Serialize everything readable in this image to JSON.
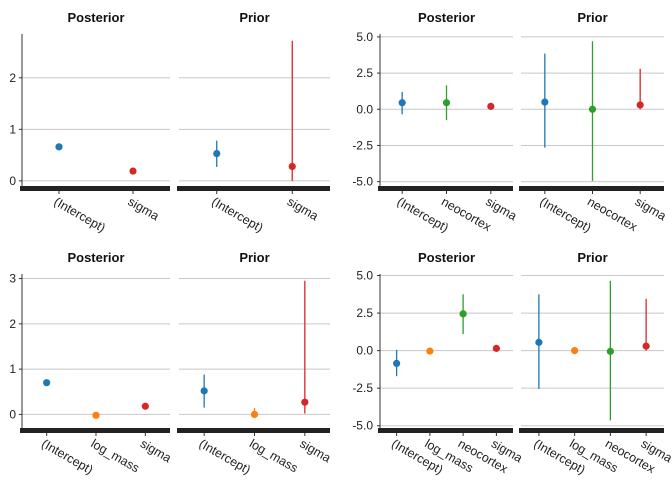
{
  "colors": {
    "intercept": "#1f77b4",
    "log_mass": "#ff7f0e",
    "neocortex": "#2ca02c",
    "sigma": "#d62728",
    "grid": "#c8c8c8",
    "axis_bar": "#222222"
  },
  "chart_data": [
    {
      "type": "scatter",
      "layout_group": 0,
      "facets": [
        {
          "title": "Posterior",
          "categories": [
            "(Intercept)",
            "sigma"
          ],
          "ylim": [
            -0.1,
            2.85
          ],
          "yticks": [
            0,
            1,
            2
          ],
          "points": [
            {
              "x": "(Intercept)",
              "y": 0.66,
              "low": 0.62,
              "high": 0.7,
              "color_key": "intercept"
            },
            {
              "x": "sigma",
              "y": 0.19,
              "low": 0.16,
              "high": 0.22,
              "color_key": "sigma"
            }
          ]
        },
        {
          "title": "Prior",
          "categories": [
            "(Intercept)",
            "sigma"
          ],
          "ylim": [
            -0.1,
            2.85
          ],
          "yticks": [],
          "points": [
            {
              "x": "(Intercept)",
              "y": 0.53,
              "low": 0.27,
              "high": 0.78,
              "color_key": "intercept"
            },
            {
              "x": "sigma",
              "y": 0.28,
              "low": 0.0,
              "high": 2.72,
              "color_key": "sigma"
            }
          ]
        }
      ]
    },
    {
      "type": "scatter",
      "layout_group": 1,
      "facets": [
        {
          "title": "Posterior",
          "categories": [
            "(Intercept)",
            "neocortex",
            "sigma"
          ],
          "ylim": [
            -5.3,
            5.2
          ],
          "yticks": [
            5.0,
            2.5,
            0.0,
            -2.5,
            -5.0
          ],
          "ytick_labels": [
            "5.0",
            "2.5",
            "0.0",
            "-2.5",
            "-5.0"
          ],
          "points": [
            {
              "x": "(Intercept)",
              "y": 0.45,
              "low": -0.35,
              "high": 1.2,
              "color_key": "intercept"
            },
            {
              "x": "neocortex",
              "y": 0.45,
              "low": -0.75,
              "high": 1.65,
              "color_key": "neocortex"
            },
            {
              "x": "sigma",
              "y": 0.2,
              "low": 0.1,
              "high": 0.3,
              "color_key": "sigma"
            }
          ]
        },
        {
          "title": "Prior",
          "categories": [
            "(Intercept)",
            "neocortex",
            "sigma"
          ],
          "ylim": [
            -5.3,
            5.2
          ],
          "yticks": [],
          "points": [
            {
              "x": "(Intercept)",
              "y": 0.5,
              "low": -2.65,
              "high": 3.85,
              "color_key": "intercept"
            },
            {
              "x": "neocortex",
              "y": 0.0,
              "low": -4.95,
              "high": 4.7,
              "color_key": "neocortex"
            },
            {
              "x": "sigma",
              "y": 0.3,
              "low": 0.0,
              "high": 2.8,
              "color_key": "sigma"
            }
          ]
        }
      ]
    },
    {
      "type": "scatter",
      "layout_group": 2,
      "facets": [
        {
          "title": "Posterior",
          "categories": [
            "(Intercept)",
            "log_mass",
            "sigma"
          ],
          "ylim": [
            -0.3,
            3.1
          ],
          "yticks": [
            0,
            1,
            2,
            3
          ],
          "points": [
            {
              "x": "(Intercept)",
              "y": 0.7,
              "low": 0.64,
              "high": 0.76,
              "color_key": "intercept"
            },
            {
              "x": "log_mass",
              "y": -0.02,
              "low": -0.06,
              "high": 0.02,
              "color_key": "log_mass"
            },
            {
              "x": "sigma",
              "y": 0.18,
              "low": 0.15,
              "high": 0.21,
              "color_key": "sigma"
            }
          ]
        },
        {
          "title": "Prior",
          "categories": [
            "(Intercept)",
            "log_mass",
            "sigma"
          ],
          "ylim": [
            -0.3,
            3.1
          ],
          "yticks": [],
          "points": [
            {
              "x": "(Intercept)",
              "y": 0.52,
              "low": 0.15,
              "high": 0.88,
              "color_key": "intercept"
            },
            {
              "x": "log_mass",
              "y": 0.0,
              "low": -0.08,
              "high": 0.14,
              "color_key": "log_mass"
            },
            {
              "x": "sigma",
              "y": 0.27,
              "low": 0.02,
              "high": 2.95,
              "color_key": "sigma"
            }
          ]
        }
      ]
    },
    {
      "type": "scatter",
      "layout_group": 3,
      "facets": [
        {
          "title": "Posterior",
          "categories": [
            "(Intercept)",
            "log_mass",
            "neocortex",
            "sigma"
          ],
          "ylim": [
            -5.15,
            5.1
          ],
          "yticks": [
            5.0,
            2.5,
            0.0,
            -2.5,
            -5.0
          ],
          "ytick_labels": [
            "5.0",
            "2.5",
            "0.0",
            "-2.5",
            "-5.0"
          ],
          "points": [
            {
              "x": "(Intercept)",
              "y": -0.85,
              "low": -1.7,
              "high": 0.05,
              "color_key": "intercept"
            },
            {
              "x": "log_mass",
              "y": -0.03,
              "low": -0.15,
              "high": 0.1,
              "color_key": "log_mass"
            },
            {
              "x": "neocortex",
              "y": 2.45,
              "low": 1.1,
              "high": 3.75,
              "color_key": "neocortex"
            },
            {
              "x": "sigma",
              "y": 0.15,
              "low": 0.05,
              "high": 0.3,
              "color_key": "sigma"
            }
          ]
        },
        {
          "title": "Prior",
          "categories": [
            "(Intercept)",
            "log_mass",
            "neocortex",
            "sigma"
          ],
          "ylim": [
            -5.15,
            5.1
          ],
          "yticks": [],
          "points": [
            {
              "x": "(Intercept)",
              "y": 0.55,
              "low": -2.55,
              "high": 3.75,
              "color_key": "intercept"
            },
            {
              "x": "log_mass",
              "y": 0.0,
              "low": -0.1,
              "high": 0.1,
              "color_key": "log_mass"
            },
            {
              "x": "neocortex",
              "y": -0.05,
              "low": -4.65,
              "high": 4.65,
              "color_key": "neocortex"
            },
            {
              "x": "sigma",
              "y": 0.3,
              "low": 0.0,
              "high": 3.45,
              "color_key": "sigma"
            }
          ]
        }
      ]
    }
  ]
}
